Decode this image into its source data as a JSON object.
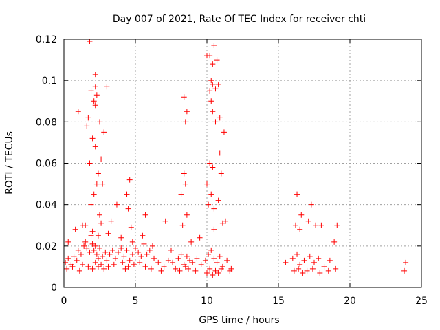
{
  "chart_data": {
    "type": "scatter",
    "title": "Day 007 of 2021, Rate Of TEC Index for receiver chti",
    "xlabel": "GPS time / hours",
    "ylabel": "ROTI / TECUs",
    "xlim": [
      0,
      25
    ],
    "ylim": [
      0,
      0.12
    ],
    "x_ticks": [
      "0",
      "5",
      "10",
      "15",
      "20",
      "25"
    ],
    "y_ticks": [
      "0",
      "0.02",
      "0.04",
      "0.06",
      "0.08",
      "0.1",
      "0.12"
    ],
    "grid": true,
    "color": "#ff0000",
    "marker": "plus",
    "series": [
      {
        "x": [
          0.1,
          0.3,
          0.5,
          0.7,
          0.9,
          1.0,
          1.2,
          1.4,
          1.5,
          1.6,
          1.8,
          1.9,
          2.0,
          2.1,
          2.2,
          2.3,
          2.4,
          2.5,
          2.7,
          2.9,
          3.0,
          3.2,
          3.4,
          3.6,
          3.8,
          4.0,
          4.2,
          4.4,
          4.6,
          4.8,
          5.0,
          5.2,
          5.4,
          5.6,
          5.8,
          6.0,
          6.3,
          6.6,
          7.0,
          7.3,
          7.6,
          8.0,
          8.2,
          8.4,
          8.6,
          8.8,
          9.0,
          9.3,
          9.6,
          9.9,
          10.1,
          10.3,
          10.5,
          10.7,
          10.9,
          11.1,
          11.4,
          11.7,
          15.5,
          16.0,
          16.3,
          16.5,
          16.8,
          17.2,
          17.5,
          17.8,
          18.2,
          18.6,
          19.0,
          23.8,
          0.2,
          0.6,
          1.1,
          1.3,
          1.7,
          2.0,
          2.2,
          2.4,
          2.6,
          2.8,
          3.1,
          3.5,
          4.1,
          4.3,
          4.5,
          4.9,
          5.3,
          5.7,
          6.1,
          6.8,
          7.8,
          8.1,
          8.5,
          8.7,
          9.2,
          10.0,
          10.2,
          10.4,
          10.6,
          10.8,
          11.0,
          11.6,
          16.1,
          16.4,
          16.7,
          17.0,
          17.4,
          17.9,
          18.5,
          23.9,
          1.5,
          1.9,
          2.1,
          2.3,
          2.5,
          3.3,
          4.5,
          4.7,
          8.3,
          8.6,
          10.1,
          10.3,
          10.5,
          10.8,
          11.1,
          16.2,
          16.5,
          17.1,
          17.6,
          1.8,
          2.0,
          2.2,
          2.4,
          2.6,
          2.7,
          3.7,
          4.4,
          4.6,
          5.7,
          7.1,
          8.2,
          8.4,
          8.5,
          10.0,
          10.2,
          10.4,
          10.9,
          11.0,
          16.3,
          1.0,
          1.6,
          1.7,
          2.1,
          2.2,
          2.5,
          2.8,
          8.5,
          8.6,
          10.3,
          10.4,
          10.6,
          10.9,
          11.2,
          1.9,
          2.2,
          2.3,
          3.0,
          8.4,
          10.2,
          10.3,
          10.4,
          10.6,
          10.8,
          1.8,
          2.2,
          10.0,
          10.2,
          10.4,
          10.5,
          10.7,
          0.3,
          0.8,
          1.3,
          2.0,
          2.4,
          2.6,
          3.1,
          4.0,
          4.8,
          5.5,
          6.2,
          7.5,
          8.9,
          9.5,
          10.5,
          11.3,
          16.6,
          17.3,
          18.0,
          18.9,
          19.1
        ],
        "y": [
          0.012,
          0.014,
          0.011,
          0.015,
          0.013,
          0.018,
          0.016,
          0.02,
          0.022,
          0.019,
          0.017,
          0.025,
          0.021,
          0.018,
          0.02,
          0.016,
          0.014,
          0.019,
          0.015,
          0.017,
          0.013,
          0.016,
          0.018,
          0.014,
          0.017,
          0.019,
          0.015,
          0.018,
          0.013,
          0.016,
          0.019,
          0.017,
          0.015,
          0.021,
          0.016,
          0.018,
          0.014,
          0.012,
          0.01,
          0.013,
          0.012,
          0.014,
          0.016,
          0.011,
          0.015,
          0.013,
          0.012,
          0.014,
          0.011,
          0.013,
          0.016,
          0.018,
          0.014,
          0.012,
          0.015,
          0.01,
          0.013,
          0.009,
          0.012,
          0.014,
          0.016,
          0.011,
          0.013,
          0.015,
          0.012,
          0.014,
          0.01,
          0.013,
          0.009,
          0.008,
          0.009,
          0.01,
          0.008,
          0.011,
          0.01,
          0.009,
          0.012,
          0.01,
          0.011,
          0.009,
          0.01,
          0.011,
          0.012,
          0.009,
          0.01,
          0.011,
          0.012,
          0.01,
          0.009,
          0.008,
          0.009,
          0.008,
          0.01,
          0.009,
          0.008,
          0.007,
          0.009,
          0.006,
          0.008,
          0.007,
          0.009,
          0.008,
          0.008,
          0.009,
          0.007,
          0.008,
          0.009,
          0.007,
          0.008,
          0.012,
          0.03,
          0.04,
          0.045,
          0.05,
          0.035,
          0.032,
          0.038,
          0.029,
          0.03,
          0.035,
          0.04,
          0.045,
          0.038,
          0.042,
          0.031,
          0.03,
          0.028,
          0.032,
          0.03,
          0.06,
          0.072,
          0.068,
          0.055,
          0.062,
          0.05,
          0.04,
          0.045,
          0.052,
          0.035,
          0.032,
          0.045,
          0.055,
          0.05,
          0.05,
          0.06,
          0.058,
          0.065,
          0.055,
          0.045,
          0.085,
          0.078,
          0.082,
          0.09,
          0.088,
          0.08,
          0.075,
          0.08,
          0.085,
          0.09,
          0.085,
          0.08,
          0.082,
          0.075,
          0.095,
          0.097,
          0.093,
          0.097,
          0.092,
          0.095,
          0.1,
          0.098,
          0.096,
          0.098,
          0.119,
          0.103,
          0.112,
          0.112,
          0.108,
          0.117,
          0.11,
          0.022,
          0.028,
          0.03,
          0.027,
          0.025,
          0.031,
          0.026,
          0.024,
          0.022,
          0.025,
          0.02,
          0.018,
          0.022,
          0.024,
          0.028,
          0.032,
          0.035,
          0.04,
          0.03,
          0.022,
          0.03
        ]
      }
    ]
  }
}
